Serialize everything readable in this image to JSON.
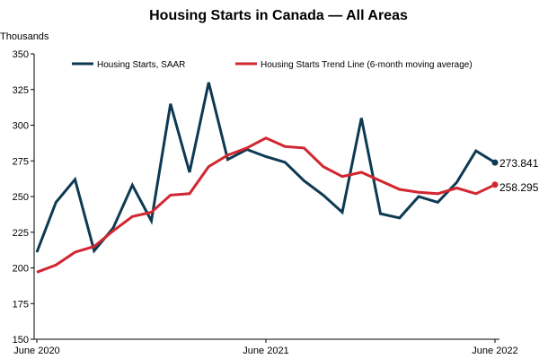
{
  "chart_data": {
    "type": "line",
    "title": "Housing Starts in Canada — All Areas",
    "ylabel": "Thousands",
    "xlabel": "",
    "ylim": [
      150,
      350
    ],
    "yticks": [
      "150",
      "175",
      "200",
      "225",
      "250",
      "275",
      "300",
      "325",
      "350"
    ],
    "xtick_labels": [
      {
        "index": 0,
        "label": "June 2020"
      },
      {
        "index": 12,
        "label": "June 2021"
      },
      {
        "index": 24,
        "label": "June 2022"
      }
    ],
    "legend_placement": "top",
    "grid": false,
    "series": [
      {
        "name": "Housing Starts, SAAR",
        "color": "#0d3a52",
        "values": [
          211,
          246,
          262,
          212,
          228,
          258,
          233,
          315,
          267,
          330,
          276,
          283,
          278,
          274,
          261,
          251,
          239,
          305,
          238,
          235,
          250,
          246,
          260,
          282,
          273.841
        ],
        "end_label": "273.841"
      },
      {
        "name": "Housing Starts Trend Line (6-month moving average)",
        "color": "#d22630",
        "values": [
          197,
          202,
          211,
          215,
          226,
          236,
          239,
          251,
          252,
          271,
          279,
          284,
          291,
          285,
          284,
          271,
          264,
          267,
          261,
          255,
          253,
          252,
          256,
          252,
          258.295
        ],
        "end_label": "258.295"
      }
    ]
  }
}
